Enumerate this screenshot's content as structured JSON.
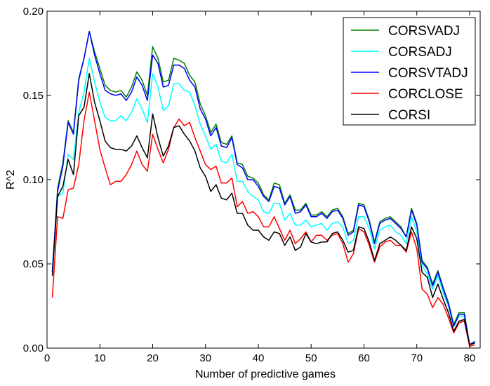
{
  "chart_data": {
    "type": "line",
    "title": "",
    "xlabel": "Number of predictive games",
    "ylabel": "R^2",
    "xlim": [
      0,
      82
    ],
    "ylim": [
      0.0,
      0.2
    ],
    "xticks": [
      0,
      10,
      20,
      30,
      40,
      50,
      60,
      70,
      80
    ],
    "yticks": [
      0.0,
      0.05,
      0.1,
      0.15,
      0.2
    ],
    "xtick_labels": [
      "0",
      "10",
      "20",
      "30",
      "40",
      "50",
      "60",
      "70",
      "80"
    ],
    "ytick_labels": [
      "0.00",
      "0.05",
      "0.10",
      "0.15",
      "0.20"
    ],
    "grid": false,
    "legend_position": "top-right",
    "x": [
      1,
      2,
      3,
      4,
      5,
      6,
      7,
      8,
      9,
      10,
      11,
      12,
      13,
      14,
      15,
      16,
      17,
      18,
      19,
      20,
      21,
      22,
      23,
      24,
      25,
      26,
      27,
      28,
      29,
      30,
      31,
      32,
      33,
      34,
      35,
      36,
      37,
      38,
      39,
      40,
      41,
      42,
      43,
      44,
      45,
      46,
      47,
      48,
      49,
      50,
      51,
      52,
      53,
      54,
      55,
      56,
      57,
      58,
      59,
      60,
      61,
      62,
      63,
      64,
      65,
      66,
      67,
      68,
      69,
      70,
      71,
      72,
      73,
      74,
      75,
      76,
      77,
      78,
      79,
      80,
      81
    ],
    "series": [
      {
        "name": "CORSVADJ",
        "color": "#008000",
        "values": [
          0.045,
          0.095,
          0.11,
          0.135,
          0.128,
          0.16,
          0.172,
          0.188,
          0.176,
          0.166,
          0.156,
          0.153,
          0.152,
          0.153,
          0.149,
          0.155,
          0.164,
          0.159,
          0.15,
          0.179,
          0.172,
          0.158,
          0.159,
          0.172,
          0.171,
          0.169,
          0.162,
          0.158,
          0.145,
          0.138,
          0.128,
          0.133,
          0.122,
          0.121,
          0.126,
          0.11,
          0.109,
          0.102,
          0.101,
          0.098,
          0.091,
          0.088,
          0.098,
          0.097,
          0.086,
          0.091,
          0.082,
          0.082,
          0.086,
          0.079,
          0.079,
          0.081,
          0.078,
          0.082,
          0.083,
          0.078,
          0.068,
          0.07,
          0.086,
          0.085,
          0.076,
          0.063,
          0.075,
          0.077,
          0.078,
          0.075,
          0.072,
          0.066,
          0.083,
          0.074,
          0.052,
          0.048,
          0.038,
          0.046,
          0.036,
          0.027,
          0.014,
          0.021,
          0.021,
          0.002,
          0.004
        ]
      },
      {
        "name": "CORSADJ",
        "color": "#00ffff",
        "values": [
          0.048,
          0.09,
          0.092,
          0.115,
          0.112,
          0.14,
          0.152,
          0.172,
          0.158,
          0.146,
          0.137,
          0.135,
          0.135,
          0.138,
          0.135,
          0.14,
          0.148,
          0.142,
          0.134,
          0.163,
          0.155,
          0.141,
          0.144,
          0.157,
          0.157,
          0.153,
          0.152,
          0.144,
          0.133,
          0.126,
          0.118,
          0.121,
          0.111,
          0.11,
          0.115,
          0.099,
          0.099,
          0.093,
          0.09,
          0.088,
          0.081,
          0.08,
          0.086,
          0.086,
          0.076,
          0.08,
          0.073,
          0.073,
          0.076,
          0.072,
          0.073,
          0.074,
          0.07,
          0.074,
          0.075,
          0.072,
          0.062,
          0.064,
          0.078,
          0.078,
          0.071,
          0.059,
          0.07,
          0.072,
          0.073,
          0.069,
          0.067,
          0.062,
          0.078,
          0.069,
          0.049,
          0.044,
          0.035,
          0.043,
          0.033,
          0.025,
          0.013,
          0.019,
          0.019,
          0.002,
          0.004
        ]
      },
      {
        "name": "CORSVTADJ",
        "color": "#0000ff",
        "values": [
          0.045,
          0.093,
          0.108,
          0.134,
          0.127,
          0.159,
          0.172,
          0.188,
          0.174,
          0.163,
          0.153,
          0.151,
          0.15,
          0.151,
          0.147,
          0.152,
          0.161,
          0.156,
          0.147,
          0.174,
          0.169,
          0.155,
          0.156,
          0.168,
          0.168,
          0.166,
          0.159,
          0.155,
          0.142,
          0.136,
          0.126,
          0.131,
          0.12,
          0.119,
          0.125,
          0.109,
          0.107,
          0.1,
          0.1,
          0.096,
          0.09,
          0.087,
          0.096,
          0.095,
          0.085,
          0.09,
          0.08,
          0.081,
          0.085,
          0.078,
          0.078,
          0.08,
          0.077,
          0.081,
          0.082,
          0.077,
          0.067,
          0.069,
          0.085,
          0.084,
          0.075,
          0.062,
          0.074,
          0.076,
          0.077,
          0.074,
          0.071,
          0.066,
          0.082,
          0.073,
          0.051,
          0.047,
          0.037,
          0.045,
          0.035,
          0.026,
          0.013,
          0.02,
          0.02,
          0.002,
          0.004
        ]
      },
      {
        "name": "CORCLOSE",
        "color": "#ff0000",
        "values": [
          0.03,
          0.078,
          0.077,
          0.094,
          0.095,
          0.109,
          0.135,
          0.152,
          0.135,
          0.118,
          0.107,
          0.097,
          0.099,
          0.099,
          0.103,
          0.109,
          0.117,
          0.109,
          0.105,
          0.127,
          0.118,
          0.11,
          0.118,
          0.131,
          0.136,
          0.132,
          0.134,
          0.125,
          0.117,
          0.109,
          0.106,
          0.108,
          0.098,
          0.098,
          0.101,
          0.084,
          0.087,
          0.08,
          0.081,
          0.078,
          0.072,
          0.072,
          0.078,
          0.071,
          0.064,
          0.07,
          0.062,
          0.065,
          0.069,
          0.063,
          0.067,
          0.067,
          0.064,
          0.067,
          0.068,
          0.062,
          0.051,
          0.056,
          0.071,
          0.069,
          0.061,
          0.051,
          0.06,
          0.063,
          0.064,
          0.061,
          0.061,
          0.057,
          0.069,
          0.059,
          0.035,
          0.032,
          0.024,
          0.03,
          0.026,
          0.018,
          0.009,
          0.015,
          0.016,
          0.001,
          0.002
        ]
      },
      {
        "name": "CORSI",
        "color": "#000000",
        "values": [
          0.043,
          0.09,
          0.096,
          0.112,
          0.103,
          0.138,
          0.143,
          0.163,
          0.146,
          0.135,
          0.123,
          0.119,
          0.118,
          0.118,
          0.117,
          0.12,
          0.126,
          0.119,
          0.113,
          0.139,
          0.125,
          0.114,
          0.12,
          0.131,
          0.132,
          0.127,
          0.123,
          0.117,
          0.107,
          0.102,
          0.093,
          0.097,
          0.089,
          0.088,
          0.092,
          0.08,
          0.08,
          0.073,
          0.07,
          0.07,
          0.066,
          0.064,
          0.069,
          0.068,
          0.061,
          0.066,
          0.058,
          0.06,
          0.068,
          0.063,
          0.062,
          0.063,
          0.063,
          0.068,
          0.069,
          0.064,
          0.057,
          0.058,
          0.072,
          0.071,
          0.063,
          0.052,
          0.062,
          0.064,
          0.066,
          0.064,
          0.061,
          0.058,
          0.072,
          0.065,
          0.045,
          0.042,
          0.03,
          0.038,
          0.029,
          0.021,
          0.01,
          0.016,
          0.017,
          0.002,
          0.003
        ]
      }
    ]
  }
}
